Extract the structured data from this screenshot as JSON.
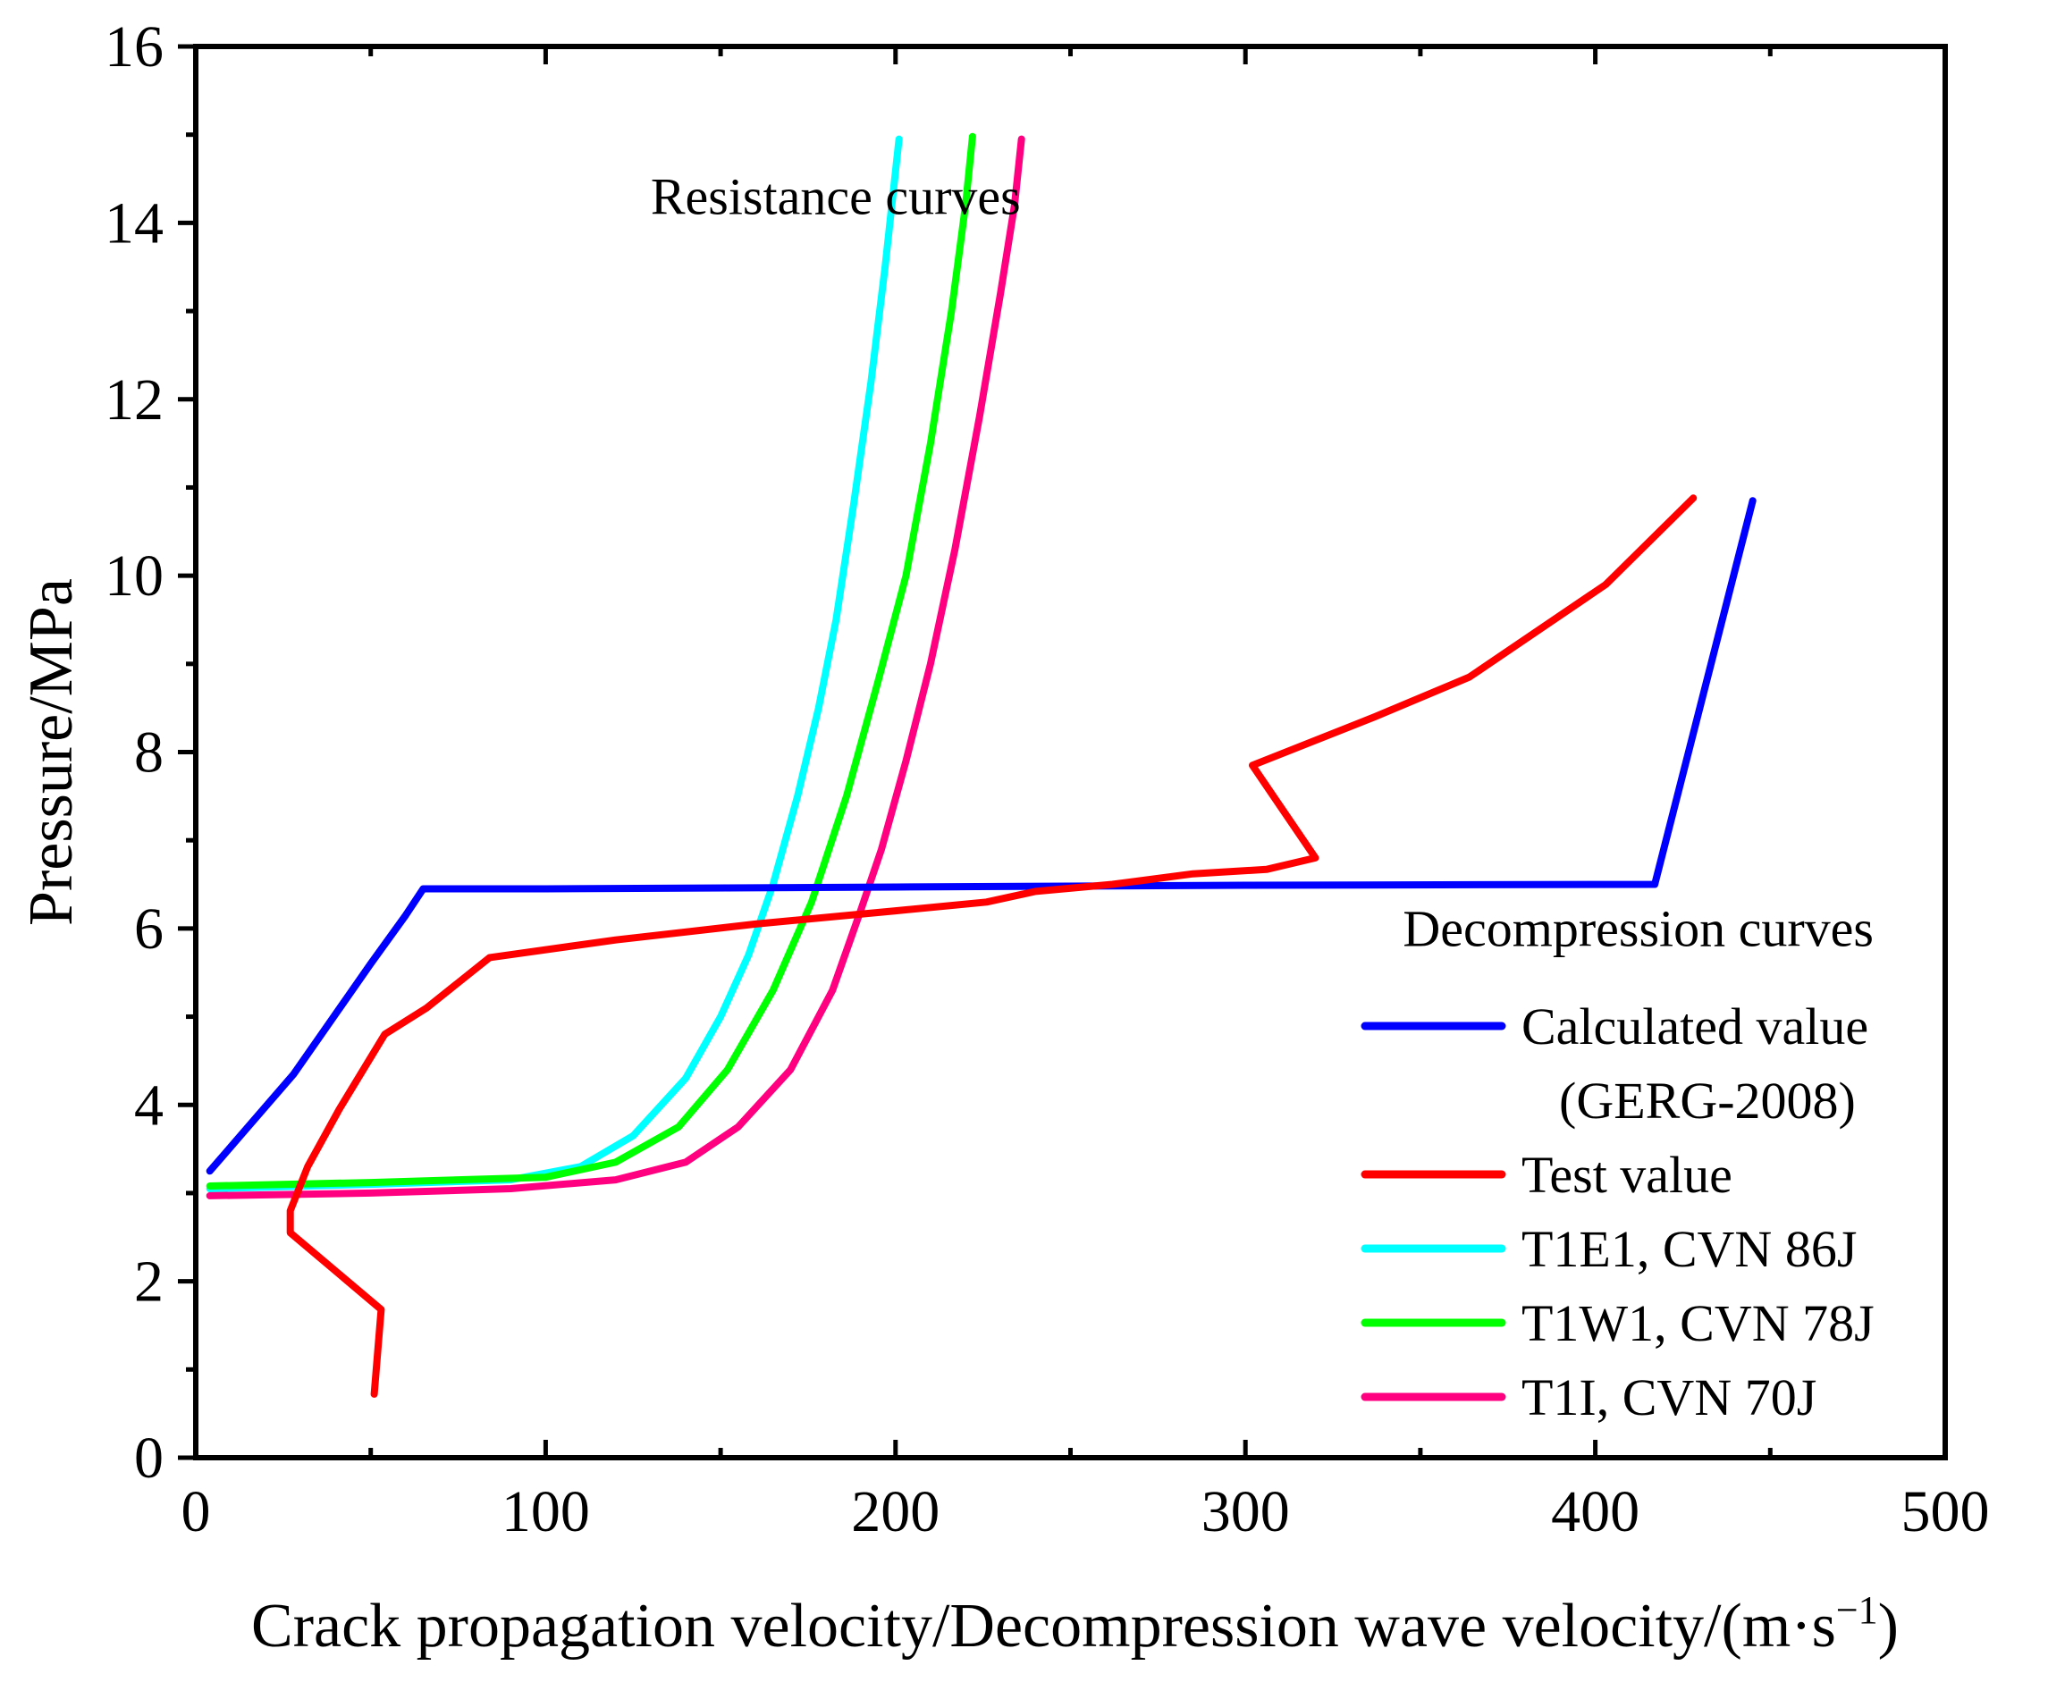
{
  "chart_data": {
    "type": "line",
    "title": "",
    "xlabel": "Crack propagation velocity/Decompression wave velocity/(m·s",
    "xlabel_sup": "−1",
    "xlabel_close": ")",
    "ylabel": "Pressure/MPa",
    "xlim": [
      0,
      500
    ],
    "ylim": [
      0,
      16
    ],
    "xticks": [
      0,
      100,
      200,
      300,
      400,
      500
    ],
    "yticks": [
      0,
      2,
      4,
      6,
      8,
      10,
      12,
      14,
      16
    ],
    "grid": false,
    "legend_position": "bottom-right",
    "annotations": [
      {
        "text": "Resistance curves",
        "x": 130,
        "y": 14.1
      },
      {
        "text": "Decompression curves",
        "x": 345,
        "y": 5.8
      }
    ],
    "series": [
      {
        "name": "Calculated value",
        "name_line2": "(GERG-2008)",
        "color": "#0000ff",
        "points": [
          [
            4,
            3.25
          ],
          [
            28,
            4.35
          ],
          [
            50,
            5.6
          ],
          [
            60,
            6.15
          ],
          [
            65,
            6.45
          ],
          [
            100,
            6.45
          ],
          [
            200,
            6.47
          ],
          [
            300,
            6.49
          ],
          [
            417,
            6.5
          ],
          [
            445,
            10.85
          ]
        ]
      },
      {
        "name": "Test value",
        "color": "#ff0000",
        "points": [
          [
            51,
            0.72
          ],
          [
            53,
            1.68
          ],
          [
            27,
            2.55
          ],
          [
            27,
            2.8
          ],
          [
            32,
            3.3
          ],
          [
            41,
            3.95
          ],
          [
            54,
            4.8
          ],
          [
            66,
            5.1
          ],
          [
            84,
            5.67
          ],
          [
            120,
            5.87
          ],
          [
            160,
            6.05
          ],
          [
            200,
            6.2
          ],
          [
            226,
            6.3
          ],
          [
            240,
            6.42
          ],
          [
            262,
            6.5
          ],
          [
            285,
            6.62
          ],
          [
            306,
            6.67
          ],
          [
            320,
            6.8
          ],
          [
            302,
            7.85
          ],
          [
            337,
            8.4
          ],
          [
            364,
            8.85
          ],
          [
            403,
            9.9
          ],
          [
            428,
            10.88
          ]
        ]
      },
      {
        "name": "T1E1, CVN 86J",
        "color": "#00ffff",
        "points": [
          [
            4,
            3.05
          ],
          [
            50,
            3.1
          ],
          [
            90,
            3.15
          ],
          [
            110,
            3.3
          ],
          [
            125,
            3.65
          ],
          [
            140,
            4.3
          ],
          [
            150,
            5.0
          ],
          [
            158,
            5.7
          ],
          [
            165,
            6.5
          ],
          [
            172,
            7.5
          ],
          [
            178,
            8.5
          ],
          [
            183,
            9.5
          ],
          [
            188,
            10.8
          ],
          [
            193,
            12.2
          ],
          [
            197,
            13.5
          ],
          [
            201,
            14.95
          ]
        ]
      },
      {
        "name": "T1W1, CVN 78J",
        "color": "#00ff00",
        "points": [
          [
            4,
            3.08
          ],
          [
            50,
            3.12
          ],
          [
            100,
            3.18
          ],
          [
            120,
            3.35
          ],
          [
            138,
            3.75
          ],
          [
            152,
            4.4
          ],
          [
            165,
            5.3
          ],
          [
            176,
            6.3
          ],
          [
            186,
            7.5
          ],
          [
            195,
            8.8
          ],
          [
            203,
            10.0
          ],
          [
            210,
            11.5
          ],
          [
            216,
            13.0
          ],
          [
            220,
            14.2
          ],
          [
            222,
            14.98
          ]
        ]
      },
      {
        "name": "T1I, CVN 70J",
        "color": "#ff0080",
        "points": [
          [
            4,
            2.97
          ],
          [
            50,
            3.0
          ],
          [
            90,
            3.05
          ],
          [
            120,
            3.15
          ],
          [
            140,
            3.35
          ],
          [
            155,
            3.75
          ],
          [
            170,
            4.4
          ],
          [
            182,
            5.3
          ],
          [
            190,
            6.2
          ],
          [
            196,
            6.9
          ],
          [
            203,
            7.9
          ],
          [
            210,
            9.0
          ],
          [
            217,
            10.3
          ],
          [
            224,
            11.8
          ],
          [
            230,
            13.2
          ],
          [
            234,
            14.2
          ],
          [
            236,
            14.95
          ]
        ]
      }
    ]
  }
}
